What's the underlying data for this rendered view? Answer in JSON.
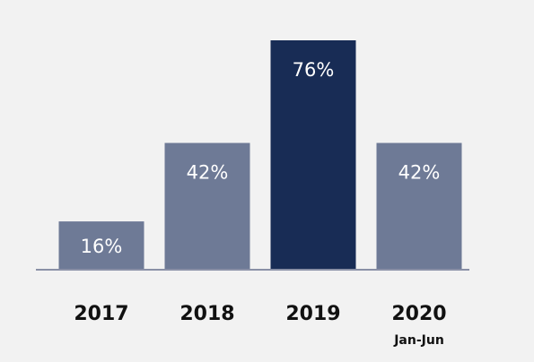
{
  "chart_data": {
    "type": "bar",
    "title": "",
    "xlabel": "",
    "ylabel": "",
    "ylim": [
      0,
      100
    ],
    "categories": [
      "2017",
      "2018",
      "2019",
      "2020"
    ],
    "category_sublabels": [
      "",
      "",
      "",
      "Jan-Jun"
    ],
    "values": [
      16,
      42,
      76,
      42
    ],
    "value_labels": [
      "16%",
      "42%",
      "76%",
      "42%"
    ],
    "colors": [
      "#6e7a96",
      "#6e7a96",
      "#182c55",
      "#6e7a96"
    ],
    "highlight_index": 2,
    "grid": false,
    "legend": "none"
  },
  "colors": {
    "background": "#f2f2f2",
    "bar": "#6e7a96",
    "bar_highlight": "#182c55",
    "baseline": "#8a90a6",
    "value_text": "#ffffff",
    "category_text": "#111111"
  }
}
